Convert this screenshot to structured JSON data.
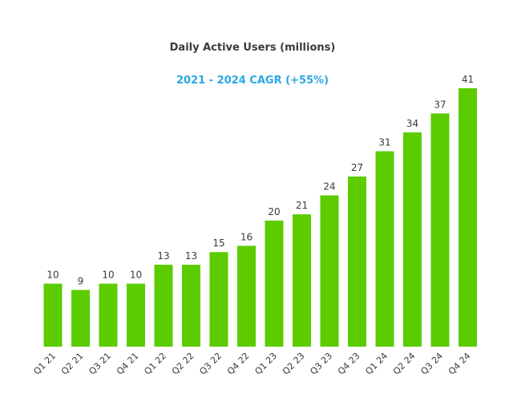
{
  "colors": {
    "bar": "#5ccc00",
    "title": "#3b3b3b",
    "subtitle": "#2aa7e3",
    "labels": "#3b3b3b"
  },
  "chart_data": {
    "type": "bar",
    "title": "Daily Active Users (millions)",
    "subtitle": "2021 - 2024 CAGR (+55%)",
    "categories": [
      "Q1 21",
      "Q2 21",
      "Q3 21",
      "Q4 21",
      "Q1 22",
      "Q2 22",
      "Q3 22",
      "Q4 22",
      "Q1 23",
      "Q2 23",
      "Q3 23",
      "Q4 23",
      "Q1 24",
      "Q2 24",
      "Q3 24",
      "Q4 24"
    ],
    "values": [
      10,
      9,
      10,
      10,
      13,
      13,
      15,
      16,
      20,
      21,
      24,
      27,
      31,
      34,
      37,
      41
    ],
    "ylim": [
      0,
      41
    ],
    "grid": false,
    "legend": "none"
  }
}
